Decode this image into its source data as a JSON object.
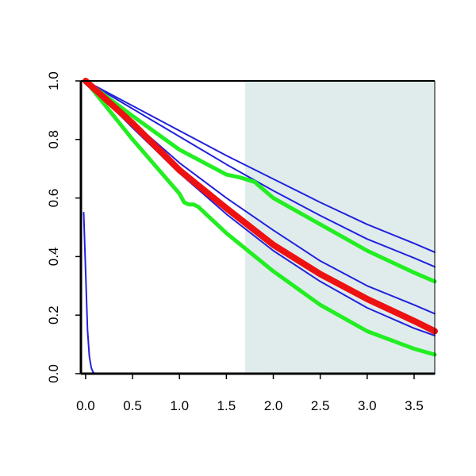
{
  "chart_data": {
    "type": "line",
    "title": "",
    "xlabel": "",
    "ylabel": "",
    "xlim": [
      -0.05,
      3.72
    ],
    "ylim": [
      0.0,
      1.0
    ],
    "grid": false,
    "legend": "none",
    "x_ticks": [
      0.0,
      0.5,
      1.0,
      1.5,
      2.0,
      2.5,
      3.0,
      3.5
    ],
    "x_tick_labels": [
      "0.0",
      "0.5",
      "1.0",
      "1.5",
      "2.0",
      "2.5",
      "3.0",
      "3.5"
    ],
    "y_ticks": [
      0.0,
      0.2,
      0.4,
      0.6,
      0.8,
      1.0
    ],
    "y_tick_labels": [
      "0.0",
      "0.2",
      "0.4",
      "0.6",
      "0.8",
      "1.0"
    ],
    "shaded_region": {
      "x_from": 1.7,
      "x_to": 3.72,
      "color": "#e0ecec"
    },
    "colors": {
      "blue": "#2222dd",
      "green": "#22ee22",
      "red": "#ee1111"
    },
    "series": [
      {
        "color": "blue",
        "width": "thin",
        "x": [
          0.0,
          0.5,
          1.0,
          1.5,
          2.0,
          2.5,
          3.0,
          3.5,
          3.72
        ],
        "y": [
          1.0,
          0.915,
          0.83,
          0.745,
          0.665,
          0.585,
          0.51,
          0.445,
          0.415
        ]
      },
      {
        "color": "blue",
        "width": "thin",
        "x": [
          0.0,
          0.5,
          1.0,
          1.5,
          2.0,
          2.5,
          3.0,
          3.5,
          3.72
        ],
        "y": [
          1.0,
          0.905,
          0.81,
          0.715,
          0.625,
          0.54,
          0.46,
          0.395,
          0.365
        ]
      },
      {
        "color": "blue",
        "width": "thin",
        "x": [
          0.0,
          0.5,
          1.0,
          1.5,
          2.0,
          2.5,
          3.0,
          3.5,
          3.72
        ],
        "y": [
          1.0,
          0.86,
          0.72,
          0.6,
          0.49,
          0.385,
          0.3,
          0.235,
          0.205
        ]
      },
      {
        "color": "blue",
        "width": "thin",
        "x": [
          0.0,
          0.5,
          1.0,
          1.5,
          2.0,
          2.5,
          3.0,
          3.5,
          3.72
        ],
        "y": [
          1.0,
          0.84,
          0.685,
          0.545,
          0.42,
          0.315,
          0.225,
          0.155,
          0.13
        ]
      },
      {
        "color": "blue",
        "width": "thin",
        "x": [
          -0.02,
          0.0,
          0.02,
          0.04,
          0.06,
          0.08,
          0.1,
          3.72
        ],
        "y": [
          0.55,
          0.35,
          0.15,
          0.06,
          0.02,
          0.005,
          0.0,
          0.0
        ]
      },
      {
        "color": "green",
        "width": "thick",
        "x": [
          0.0,
          0.5,
          1.0,
          1.5,
          1.65,
          1.8,
          2.0,
          2.5,
          3.0,
          3.5,
          3.72
        ],
        "y": [
          1.0,
          0.88,
          0.765,
          0.68,
          0.67,
          0.655,
          0.6,
          0.51,
          0.42,
          0.345,
          0.315
        ]
      },
      {
        "color": "green",
        "width": "thick",
        "x": [
          0.0,
          0.5,
          1.0,
          1.05,
          1.1,
          1.15,
          1.2,
          1.5,
          2.0,
          2.5,
          3.0,
          3.5,
          3.72
        ],
        "y": [
          1.0,
          0.8,
          0.615,
          0.585,
          0.578,
          0.578,
          0.57,
          0.48,
          0.35,
          0.235,
          0.145,
          0.085,
          0.065
        ]
      },
      {
        "color": "red",
        "width": "thicker",
        "x": [
          0.0,
          0.5,
          1.0,
          1.5,
          2.0,
          2.5,
          3.0,
          3.5,
          3.72
        ],
        "y": [
          1.0,
          0.855,
          0.695,
          0.565,
          0.44,
          0.34,
          0.255,
          0.18,
          0.145
        ]
      }
    ]
  }
}
